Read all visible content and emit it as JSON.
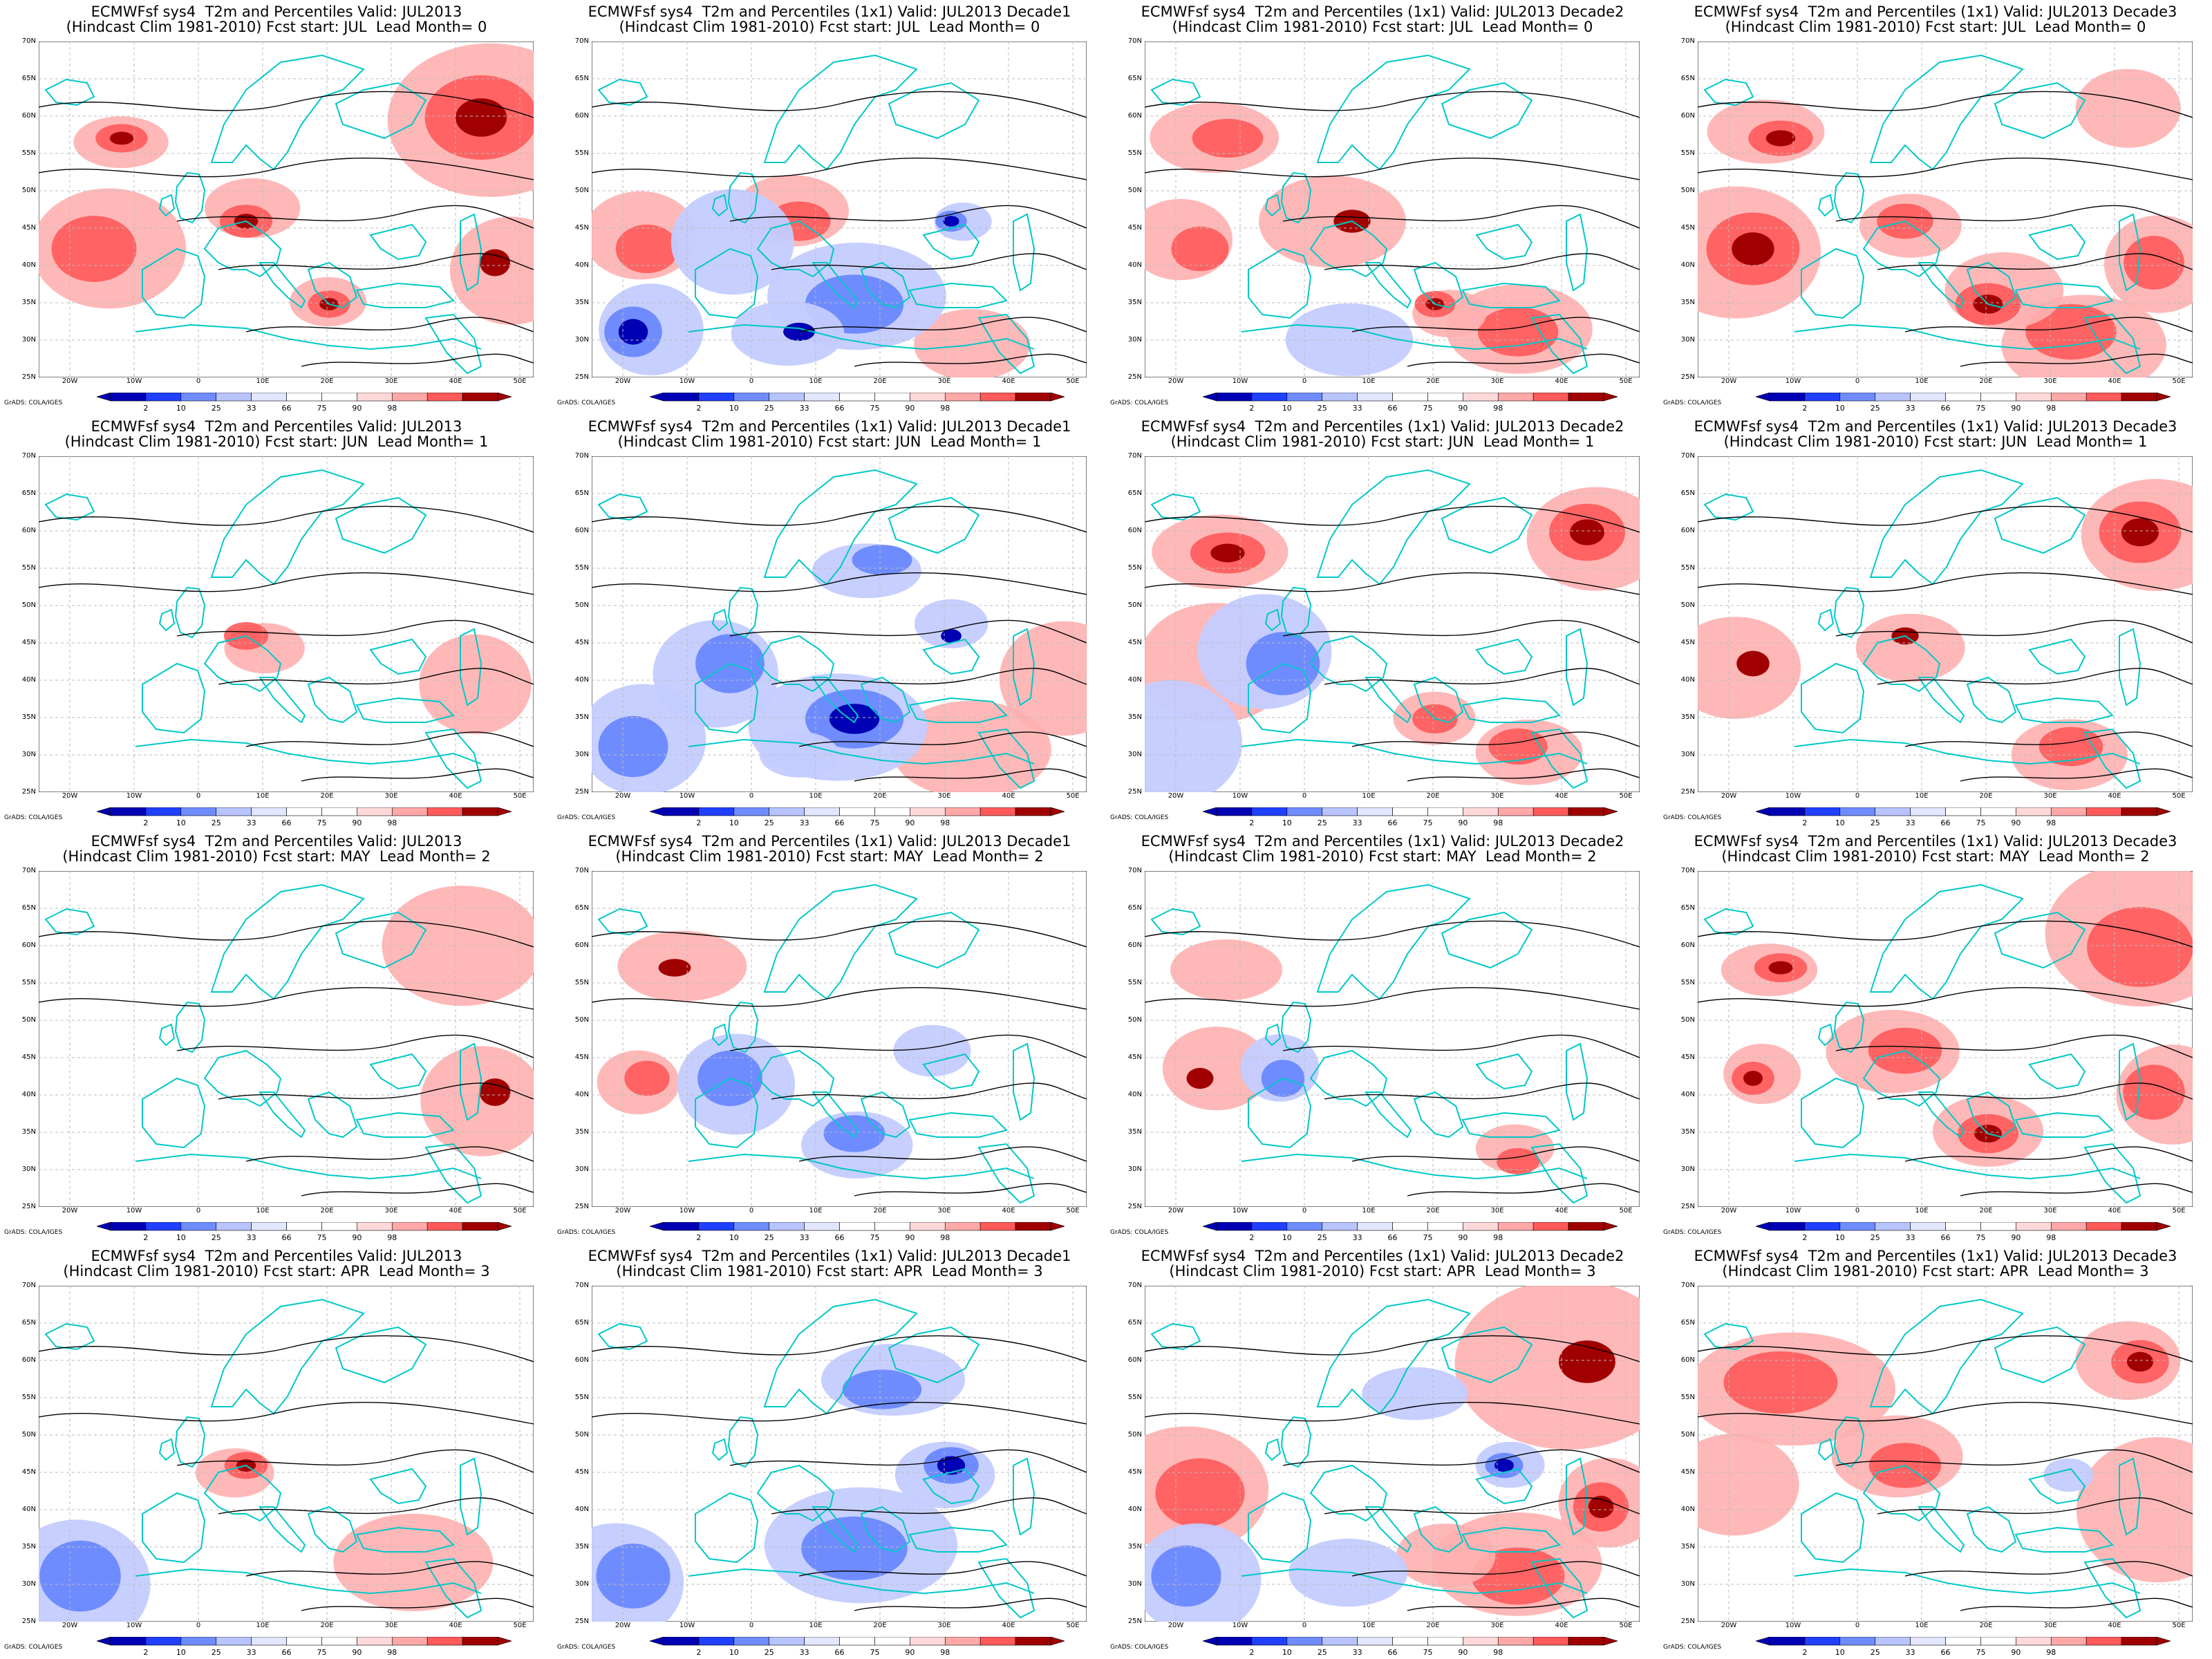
{
  "credit": "GrADS: COLA/IGES",
  "lat_labels": [
    "70N",
    "65N",
    "60N",
    "55N",
    "50N",
    "45N",
    "40N",
    "35N",
    "30N",
    "25N"
  ],
  "lon_labels": [
    "20W",
    "10W",
    "0",
    "10E",
    "20E",
    "30E",
    "40E",
    "50E"
  ],
  "colorbar_ticks": [
    "2",
    "10",
    "25",
    "33",
    "66",
    "75",
    "90",
    "98"
  ],
  "colorbar_colors": [
    "#0000b4",
    "#2040ff",
    "#6f8cff",
    "#b8c4ff",
    "#e2e6ff",
    "#ffffff",
    "#ffffff",
    "#ffd9d9",
    "#ffa8a8",
    "#ff5a5a",
    "#a00000"
  ],
  "colors": {
    "coast": "#00c8c8",
    "contour": "#000000",
    "grid": "#bbbbbb",
    "warm": "#ff8080",
    "cold": "#6f8cff",
    "deep_warm": "#a00000",
    "deep_cold": "#0000b4"
  },
  "panels": [
    {
      "title1": "ECMWFsf sys4  T2m and Percentiles Valid: JUL2013",
      "title2": "(Hindcast Clim 1981-2010) Fcst start: JUL  Lead Month= 0",
      "warm": 0.7,
      "cold": 0.15
    },
    {
      "title1": "ECMWFsf sys4  T2m and Percentiles (1x1) Valid: JUL2013 Decade1",
      "title2": "(Hindcast Clim 1981-2010) Fcst start: JUL  Lead Month= 0",
      "warm": 0.55,
      "cold": 0.75
    },
    {
      "title1": "ECMWFsf sys4  T2m and Percentiles (1x1) Valid: JUL2013 Decade2",
      "title2": "(Hindcast Clim 1981-2010) Fcst start: JUL  Lead Month= 0",
      "warm": 0.8,
      "cold": 0.1
    },
    {
      "title1": "ECMWFsf sys4  T2m and Percentiles (1x1) Valid: JUL2013 Decade3",
      "title2": "(Hindcast Clim 1981-2010) Fcst start: JUL  Lead Month= 0",
      "warm": 0.95,
      "cold": 0.0
    },
    {
      "title1": "ECMWFsf sys4  T2m and Percentiles Valid: JUL2013",
      "title2": "(Hindcast Clim 1981-2010) Fcst start: JUN  Lead Month= 1",
      "warm": 0.45,
      "cold": 0.05
    },
    {
      "title1": "ECMWFsf sys4  T2m and Percentiles (1x1) Valid: JUL2013 Decade1",
      "title2": "(Hindcast Clim 1981-2010) Fcst start: JUN  Lead Month= 1",
      "warm": 0.3,
      "cold": 0.7
    },
    {
      "title1": "ECMWFsf sys4  T2m and Percentiles (1x1) Valid: JUL2013 Decade2",
      "title2": "(Hindcast Clim 1981-2010) Fcst start: JUN  Lead Month= 1",
      "warm": 0.6,
      "cold": 0.2
    },
    {
      "title1": "ECMWFsf sys4  T2m and Percentiles (1x1) Valid: JUL2013 Decade3",
      "title2": "(Hindcast Clim 1981-2010) Fcst start: JUN  Lead Month= 1",
      "warm": 0.75,
      "cold": 0.05
    },
    {
      "title1": "ECMWFsf sys4  T2m and Percentiles Valid: JUL2013",
      "title2": "(Hindcast Clim 1981-2010) Fcst start: MAY  Lead Month= 2",
      "warm": 0.35,
      "cold": 0.15
    },
    {
      "title1": "ECMWFsf sys4  T2m and Percentiles (1x1) Valid: JUL2013 Decade1",
      "title2": "(Hindcast Clim 1981-2010) Fcst start: MAY  Lead Month= 2",
      "warm": 0.25,
      "cold": 0.6
    },
    {
      "title1": "ECMWFsf sys4  T2m and Percentiles (1x1) Valid: JUL2013 Decade2",
      "title2": "(Hindcast Clim 1981-2010) Fcst start: MAY  Lead Month= 2",
      "warm": 0.55,
      "cold": 0.3
    },
    {
      "title1": "ECMWFsf sys4  T2m and Percentiles (1x1) Valid: JUL2013 Decade3",
      "title2": "(Hindcast Clim 1981-2010) Fcst start: MAY  Lead Month= 2",
      "warm": 0.8,
      "cold": 0.05
    },
    {
      "title1": "ECMWFsf sys4  T2m and Percentiles Valid: JUL2013",
      "title2": "(Hindcast Clim 1981-2010) Fcst start: APR  Lead Month= 3",
      "warm": 0.3,
      "cold": 0.25
    },
    {
      "title1": "ECMWFsf sys4  T2m and Percentiles (1x1) Valid: JUL2013 Decade1",
      "title2": "(Hindcast Clim 1981-2010) Fcst start: APR  Lead Month= 3",
      "warm": 0.15,
      "cold": 0.85
    },
    {
      "title1": "ECMWFsf sys4  T2m and Percentiles (1x1) Valid: JUL2013 Decade2",
      "title2": "(Hindcast Clim 1981-2010) Fcst start: APR  Lead Month= 3",
      "warm": 0.4,
      "cold": 0.4
    },
    {
      "title1": "ECMWFsf sys4  T2m and Percentiles (1x1) Valid: JUL2013 Decade3",
      "title2": "(Hindcast Clim 1981-2010) Fcst start: APR  Lead Month= 3",
      "warm": 0.7,
      "cold": 0.15
    }
  ]
}
